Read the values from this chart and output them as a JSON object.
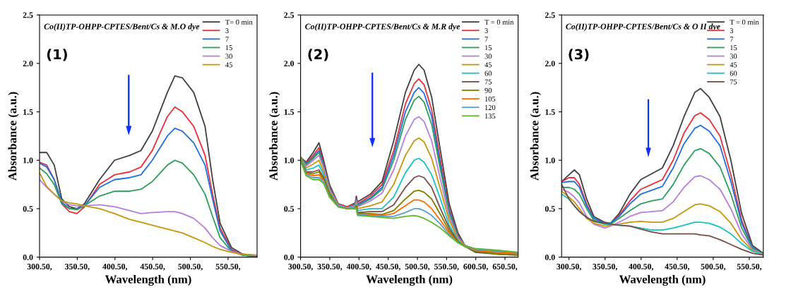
{
  "chart_data": [
    {
      "type": "line",
      "title": "Co(II)TP-OHPP-CPTES/Bent/Cs & M.O dye",
      "annotations": [
        "(1)"
      ],
      "xlabel": "Wavelength (nm)",
      "ylabel": "Absorbance (a.u.)",
      "legend": "top right",
      "grid": false,
      "x": [
        300.5,
        310,
        320,
        330,
        340,
        350,
        360,
        380,
        400,
        420,
        435,
        450,
        470,
        480,
        490,
        505,
        520,
        530,
        540,
        555,
        570,
        589
      ],
      "xlim": [
        300.5,
        589
      ],
      "xticks": [
        {
          "value": 300.5,
          "label": "300.50,"
        },
        {
          "value": 350.5,
          "label": "350.50,"
        },
        {
          "value": 400.5,
          "label": "400.50,"
        },
        {
          "value": 450.5,
          "label": "450.50,"
        },
        {
          "value": 500.5,
          "label": "500.50,"
        },
        {
          "value": 550.5,
          "label": "550.50,"
        }
      ],
      "ylim": [
        0,
        2.5
      ],
      "yticks": [
        {
          "value": 0,
          "label": "0.0"
        },
        {
          "value": 0.5,
          "label": "0.5"
        },
        {
          "value": 1,
          "label": "1.0"
        },
        {
          "value": 1.5,
          "label": "1.5"
        },
        {
          "value": 2,
          "label": "2.0"
        },
        {
          "value": 2.5,
          "label": "2.5"
        }
      ],
      "series": [
        {
          "name": "T= 0 min",
          "color": "#404040",
          "values": [
            1.08,
            1.08,
            0.95,
            0.6,
            0.52,
            0.5,
            0.55,
            0.8,
            1.0,
            1.05,
            1.1,
            1.3,
            1.7,
            1.87,
            1.85,
            1.7,
            1.35,
            0.8,
            0.35,
            0.1,
            0.03,
            0.01
          ]
        },
        {
          "name": "3",
          "color": "#e8303a",
          "values": [
            0.98,
            0.95,
            0.8,
            0.55,
            0.47,
            0.45,
            0.52,
            0.75,
            0.85,
            0.88,
            0.93,
            1.1,
            1.45,
            1.55,
            1.5,
            1.35,
            1.05,
            0.65,
            0.3,
            0.08,
            0.02,
            0.01
          ]
        },
        {
          "name": "7",
          "color": "#1f6fe0",
          "values": [
            0.97,
            0.93,
            0.8,
            0.57,
            0.5,
            0.5,
            0.53,
            0.72,
            0.8,
            0.82,
            0.85,
            1.0,
            1.25,
            1.33,
            1.3,
            1.18,
            0.95,
            0.6,
            0.27,
            0.07,
            0.02,
            0.01
          ]
        },
        {
          "name": "15",
          "color": "#2e9e5b",
          "values": [
            0.92,
            0.86,
            0.75,
            0.55,
            0.5,
            0.49,
            0.53,
            0.63,
            0.68,
            0.68,
            0.7,
            0.78,
            0.95,
            1.0,
            0.97,
            0.85,
            0.65,
            0.42,
            0.2,
            0.06,
            0.02,
            0.01
          ]
        },
        {
          "name": "30",
          "color": "#b57edc",
          "values": [
            0.8,
            0.72,
            0.65,
            0.58,
            0.54,
            0.53,
            0.53,
            0.54,
            0.52,
            0.48,
            0.45,
            0.46,
            0.47,
            0.47,
            0.45,
            0.4,
            0.3,
            0.2,
            0.12,
            0.06,
            0.03,
            0.02
          ]
        },
        {
          "name": "45",
          "color": "#c8960c",
          "values": [
            0.87,
            0.73,
            0.65,
            0.58,
            0.56,
            0.55,
            0.53,
            0.5,
            0.45,
            0.39,
            0.36,
            0.33,
            0.29,
            0.27,
            0.25,
            0.2,
            0.15,
            0.11,
            0.08,
            0.05,
            0.03,
            0.02
          ]
        }
      ]
    },
    {
      "type": "line",
      "title": "Co(II)TP-OHPP-CPTES/Bent/Cs & M.R dye",
      "annotations": [
        "(2)"
      ],
      "xlabel": "Wavelength (nm)",
      "ylabel": "Absorbance (a.u.)",
      "legend": "top right",
      "grid": false,
      "x": [
        300.5,
        310,
        322,
        332,
        340,
        350,
        365,
        380,
        394,
        396,
        398,
        420,
        440,
        460,
        480,
        495,
        503,
        512,
        525,
        540,
        555,
        570,
        582,
        600,
        640,
        673
      ],
      "xlim": [
        300.5,
        673
      ],
      "xticks": [
        {
          "value": 300.5,
          "label": "300.50,"
        },
        {
          "value": 350.5,
          "label": "350.50,"
        },
        {
          "value": 400.5,
          "label": "400.50,"
        },
        {
          "value": 450.5,
          "label": "450.50,"
        },
        {
          "value": 500.5,
          "label": "500.50,"
        },
        {
          "value": 550.5,
          "label": "550.50,"
        },
        {
          "value": 600.5,
          "label": "600.50,"
        },
        {
          "value": 650.5,
          "label": "650.50,"
        }
      ],
      "ylim": [
        0,
        2.5
      ],
      "yticks": [
        {
          "value": 0,
          "label": "0.0"
        },
        {
          "value": 0.5,
          "label": "0.5"
        },
        {
          "value": 1,
          "label": "1.0"
        },
        {
          "value": 1.5,
          "label": "1.5"
        },
        {
          "value": 2,
          "label": "2.0"
        },
        {
          "value": 2.5,
          "label": "2.5"
        }
      ],
      "series": [
        {
          "name": "T = 0 min",
          "color": "#404040",
          "values": [
            1.03,
            0.98,
            1.08,
            1.18,
            1.0,
            0.75,
            0.55,
            0.52,
            0.56,
            0.63,
            0.57,
            0.65,
            0.78,
            1.2,
            1.7,
            1.93,
            1.99,
            1.93,
            1.65,
            1.1,
            0.55,
            0.25,
            0.12,
            0.08,
            0.05,
            0.04
          ]
        },
        {
          "name": "3",
          "color": "#e8303a",
          "values": [
            1.03,
            0.97,
            1.05,
            1.13,
            0.97,
            0.73,
            0.55,
            0.52,
            0.55,
            0.61,
            0.55,
            0.63,
            0.75,
            1.1,
            1.58,
            1.79,
            1.84,
            1.78,
            1.52,
            1.0,
            0.5,
            0.23,
            0.12,
            null,
            null,
            null
          ]
        },
        {
          "name": "7",
          "color": "#1f6fe0",
          "values": [
            1.03,
            0.96,
            1.03,
            1.1,
            0.95,
            0.72,
            0.54,
            0.51,
            0.54,
            0.6,
            0.54,
            0.61,
            0.72,
            1.05,
            1.5,
            1.7,
            1.75,
            1.69,
            1.45,
            0.95,
            0.48,
            0.22,
            0.12,
            0.08,
            0.05,
            null
          ]
        },
        {
          "name": "15",
          "color": "#2e9e5b",
          "values": [
            1.03,
            0.95,
            1.02,
            1.08,
            0.94,
            0.71,
            0.54,
            0.51,
            0.54,
            0.59,
            0.53,
            0.6,
            0.7,
            1.0,
            1.42,
            1.62,
            1.66,
            1.6,
            1.37,
            0.9,
            0.46,
            0.21,
            0.12,
            0.07,
            0.05,
            0.03
          ]
        },
        {
          "name": "30",
          "color": "#b57edc",
          "values": [
            1.02,
            0.94,
            1.0,
            1.05,
            0.92,
            0.7,
            0.54,
            0.51,
            0.53,
            0.58,
            0.52,
            0.58,
            0.66,
            0.9,
            1.25,
            1.42,
            1.45,
            1.4,
            1.2,
            0.8,
            0.42,
            0.2,
            0.12,
            0.07,
            null,
            null
          ]
        },
        {
          "name": "45",
          "color": "#c8960c",
          "values": [
            1.02,
            0.92,
            0.96,
            1.0,
            0.88,
            0.68,
            0.53,
            0.5,
            0.52,
            0.56,
            0.5,
            0.53,
            0.57,
            0.75,
            1.05,
            1.2,
            1.23,
            1.19,
            1.02,
            0.7,
            0.38,
            0.19,
            0.12,
            0.06,
            0.04,
            0.03
          ]
        },
        {
          "name": "60",
          "color": "#17c3c3",
          "values": [
            1.01,
            0.9,
            0.92,
            0.95,
            0.85,
            0.66,
            0.53,
            0.5,
            0.51,
            0.54,
            0.48,
            0.5,
            0.5,
            0.62,
            0.87,
            1.0,
            1.02,
            0.98,
            0.85,
            0.6,
            0.33,
            0.17,
            0.11,
            0.05,
            null,
            null
          ]
        },
        {
          "name": "75",
          "color": "#7a4a44",
          "values": [
            1.0,
            0.88,
            0.88,
            0.9,
            0.82,
            0.65,
            0.52,
            0.5,
            0.5,
            0.53,
            0.46,
            0.47,
            0.47,
            0.54,
            0.72,
            0.82,
            0.84,
            0.82,
            0.72,
            0.5,
            0.3,
            0.16,
            0.11,
            0.05,
            0.03,
            0.02
          ]
        },
        {
          "name": "90",
          "color": "#808000",
          "values": [
            1.0,
            0.87,
            0.86,
            0.88,
            0.8,
            0.64,
            0.52,
            0.5,
            0.5,
            0.52,
            0.45,
            0.45,
            0.44,
            0.48,
            0.6,
            0.68,
            0.69,
            0.67,
            0.6,
            0.44,
            0.27,
            0.15,
            0.11,
            0.06,
            0.03,
            0.02
          ]
        },
        {
          "name": "105",
          "color": "#ff6a00",
          "values": [
            1.0,
            0.86,
            0.84,
            0.85,
            0.79,
            0.63,
            0.52,
            0.5,
            0.5,
            0.51,
            0.44,
            0.44,
            0.43,
            0.45,
            0.53,
            0.59,
            0.59,
            0.57,
            0.5,
            0.38,
            0.25,
            0.15,
            0.11,
            0.07,
            0.05,
            0.04
          ]
        },
        {
          "name": "120",
          "color": "#5b9bd5",
          "values": [
            1.0,
            0.85,
            0.82,
            0.82,
            0.78,
            0.62,
            0.52,
            0.5,
            0.5,
            0.5,
            0.44,
            0.43,
            0.42,
            0.42,
            0.46,
            0.5,
            0.5,
            0.48,
            0.43,
            0.34,
            0.23,
            0.15,
            0.11,
            0.08,
            0.06,
            0.05
          ]
        },
        {
          "name": "135",
          "color": "#5cb82a",
          "values": [
            1.0,
            0.84,
            0.8,
            0.8,
            0.76,
            0.62,
            0.52,
            0.5,
            0.5,
            0.5,
            0.43,
            0.42,
            0.41,
            0.4,
            0.42,
            0.43,
            0.42,
            0.4,
            0.36,
            0.3,
            0.22,
            0.15,
            0.11,
            0.09,
            0.07,
            0.05
          ]
        }
      ]
    },
    {
      "type": "line",
      "title": "Co(II)TP-OHPP-CPTES/Bent/Cs & O II dye",
      "annotations": [
        "(3)"
      ],
      "xlabel": "Wavelength (nm)",
      "ylabel": "Absorbance (a.u.)",
      "legend": "top right",
      "grid": false,
      "x": [
        290.5,
        300.5,
        308,
        315,
        325,
        335,
        350,
        358,
        370,
        385,
        400,
        415,
        430,
        445,
        460,
        475,
        483,
        495,
        510,
        525,
        540,
        555,
        570
      ],
      "xlim": [
        290.3,
        570
      ],
      "xticks": [
        {
          "value": 300.5,
          "label": "300.50,"
        },
        {
          "value": 350.5,
          "label": "350.50,"
        },
        {
          "value": 400.5,
          "label": "400.50,"
        },
        {
          "value": 450.5,
          "label": "450.50,"
        },
        {
          "value": 500.5,
          "label": "500.50,"
        },
        {
          "value": 550.5,
          "label": "550.50,"
        }
      ],
      "ylim": [
        0,
        2.5
      ],
      "yticks": [
        {
          "value": 0,
          "label": "0.0"
        },
        {
          "value": 0.5,
          "label": "0.5"
        },
        {
          "value": 1,
          "label": "1.0"
        },
        {
          "value": 1.5,
          "label": "1.5"
        },
        {
          "value": 2,
          "label": "2.0"
        },
        {
          "value": 2.5,
          "label": "2.5"
        }
      ],
      "series": [
        {
          "name": "T = 0 min",
          "color": "#404040",
          "values": [
            0.78,
            0.85,
            0.9,
            0.85,
            0.6,
            0.42,
            0.36,
            0.35,
            0.45,
            0.65,
            0.8,
            0.86,
            0.92,
            1.15,
            1.45,
            1.7,
            1.74,
            1.65,
            1.45,
            1.0,
            0.45,
            0.12,
            0.04
          ]
        },
        {
          "name": "3",
          "color": "#e8303a",
          "values": [
            0.78,
            0.82,
            0.82,
            0.75,
            0.55,
            0.4,
            0.35,
            0.35,
            0.43,
            0.58,
            0.7,
            0.75,
            0.8,
            1.0,
            1.28,
            1.46,
            1.49,
            1.42,
            1.25,
            0.85,
            0.38,
            0.1,
            0.03
          ]
        },
        {
          "name": "7",
          "color": "#1f6fe0",
          "values": [
            0.77,
            0.78,
            0.78,
            0.72,
            0.53,
            0.4,
            0.35,
            0.35,
            0.42,
            0.55,
            0.65,
            0.69,
            0.73,
            0.92,
            1.17,
            1.33,
            1.36,
            1.3,
            1.15,
            0.78,
            0.35,
            0.1,
            0.03
          ]
        },
        {
          "name": "15",
          "color": "#2e9e5b",
          "values": [
            0.72,
            0.72,
            0.7,
            0.65,
            0.5,
            0.38,
            0.34,
            0.34,
            0.4,
            0.48,
            0.55,
            0.58,
            0.6,
            0.75,
            0.95,
            1.1,
            1.12,
            1.07,
            0.93,
            0.65,
            0.3,
            0.09,
            0.03
          ]
        },
        {
          "name": "30",
          "color": "#b57edc",
          "values": [
            0.7,
            0.67,
            0.62,
            0.56,
            0.42,
            0.34,
            0.3,
            0.32,
            0.36,
            0.42,
            0.46,
            0.47,
            0.48,
            0.57,
            0.72,
            0.83,
            0.84,
            0.8,
            0.7,
            0.5,
            0.24,
            0.08,
            0.03
          ]
        },
        {
          "name": "45",
          "color": "#c8960c",
          "values": [
            0.68,
            0.62,
            0.57,
            0.5,
            0.4,
            0.35,
            0.32,
            0.33,
            0.34,
            0.36,
            0.37,
            0.36,
            0.36,
            0.4,
            0.47,
            0.54,
            0.55,
            0.53,
            0.47,
            0.35,
            0.18,
            0.07,
            0.03
          ]
        },
        {
          "name": "60",
          "color": "#17c3c3",
          "values": [
            0.65,
            0.6,
            0.53,
            0.47,
            0.41,
            0.37,
            0.34,
            0.34,
            0.33,
            0.32,
            0.3,
            0.28,
            0.28,
            0.3,
            0.33,
            0.36,
            0.36,
            0.35,
            0.31,
            0.24,
            0.14,
            0.06,
            0.03
          ]
        },
        {
          "name": "75",
          "color": "#7a4a44",
          "values": [
            0.75,
            0.6,
            0.53,
            0.47,
            0.41,
            0.37,
            0.35,
            0.34,
            0.33,
            0.32,
            0.29,
            0.26,
            0.24,
            0.24,
            0.24,
            0.24,
            0.23,
            0.22,
            0.18,
            0.13,
            0.08,
            0.04,
            0.02
          ]
        }
      ]
    }
  ]
}
